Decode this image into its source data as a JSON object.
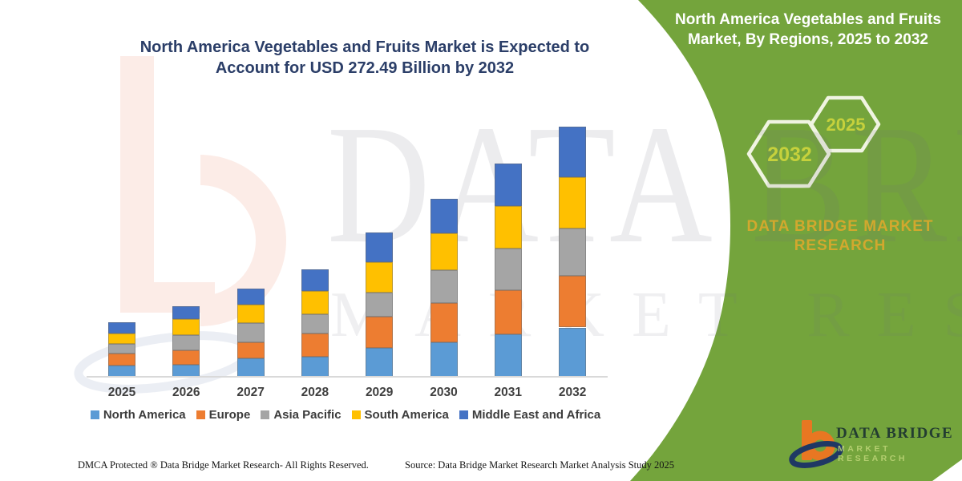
{
  "header": {
    "chart_title_line1": "North America Vegetables and Fruits Market is Expected to",
    "chart_title_line2": "Account for USD 272.49 Billion by 2032"
  },
  "side_panel": {
    "title_line1": "North America Vegetables and Fruits",
    "title_line2": "Market, By Regions, 2025 to 2032",
    "hexagon_back_year": "2032",
    "hexagon_front_year": "2025",
    "brand_line1": "DATA BRIDGE MARKET",
    "brand_line2": "RESEARCH",
    "colors": {
      "panel_green": "#74a43c",
      "hexagon_outline": "#f0f4e2",
      "hexagon_year_text": "#c6d13c",
      "brand_gold": "#d2a82e"
    }
  },
  "watermark": {
    "line1": "DATA BRIDGE",
    "line2": "MARKET RESEARCH"
  },
  "footer": {
    "dmca": "DMCA Protected ® Data Bridge Market Research-  All Rights Reserved.",
    "source": "Source: Data Bridge Market Research  Market Analysis Study 2025"
  },
  "logo": {
    "name_line": "DATA BRIDGE",
    "sub_line": "MARKET RESEARCH"
  },
  "chart_data": {
    "type": "bar",
    "stacked": true,
    "title": "North America Vegetables and Fruits Market is Expected to Account for USD 272.49 Billion by 2032",
    "values_unit": "USD Billion (estimated from bar heights; no y-axis shown)",
    "categories": [
      "2025",
      "2026",
      "2027",
      "2028",
      "2029",
      "2030",
      "2031",
      "2032"
    ],
    "series": [
      {
        "name": "North America",
        "color": "#5b9bd5",
        "values": [
          12.2,
          13.1,
          20.3,
          22.0,
          31.4,
          37.8,
          46.5,
          53.7
        ]
      },
      {
        "name": "Europe",
        "color": "#ed7d31",
        "values": [
          13.5,
          16.0,
          16.9,
          25.5,
          34.2,
          42.5,
          48.0,
          56.7
        ]
      },
      {
        "name": "Asia Pacific",
        "color": "#a5a5a5",
        "values": [
          10.2,
          16.6,
          20.9,
          20.7,
          25.7,
          36.0,
          45.1,
          51.0
        ]
      },
      {
        "name": "South America",
        "color": "#ffc000",
        "values": [
          11.0,
          16.8,
          20.3,
          25.6,
          34.0,
          40.1,
          46.5,
          55.8
        ]
      },
      {
        "name": "Middle East and Africa",
        "color": "#4472c4",
        "values": [
          12.5,
          14.0,
          17.7,
          22.9,
          31.7,
          37.8,
          46.5,
          55.3
        ]
      }
    ],
    "totals_estimated": [
      59.4,
      76.5,
      96.1,
      116.7,
      157.0,
      194.2,
      232.6,
      272.49
    ],
    "highlight_total_2032": "272.49",
    "xlabel": "",
    "ylabel": "",
    "grid": false,
    "legend_position": "bottom"
  }
}
